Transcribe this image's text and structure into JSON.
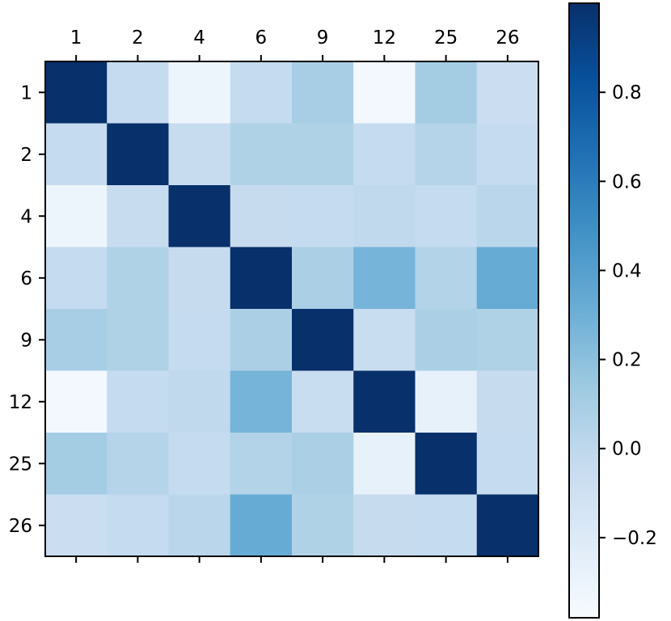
{
  "chart_data": {
    "type": "heatmap",
    "x_labels": [
      "1",
      "2",
      "4",
      "6",
      "9",
      "12",
      "25",
      "26"
    ],
    "y_labels": [
      "1",
      "2",
      "4",
      "6",
      "9",
      "12",
      "25",
      "26"
    ],
    "values": [
      [
        1.0,
        -0.03,
        -0.31,
        -0.03,
        0.1,
        -0.35,
        0.11,
        -0.07
      ],
      [
        -0.03,
        1.0,
        -0.05,
        0.06,
        0.06,
        -0.03,
        0.04,
        -0.03
      ],
      [
        -0.31,
        -0.05,
        1.0,
        -0.04,
        -0.03,
        -0.01,
        -0.03,
        0.02
      ],
      [
        -0.03,
        0.06,
        -0.04,
        1.0,
        0.08,
        0.27,
        0.05,
        0.33
      ],
      [
        0.1,
        0.06,
        -0.03,
        0.08,
        1.0,
        -0.06,
        0.08,
        0.06
      ],
      [
        -0.35,
        -0.03,
        -0.01,
        0.27,
        -0.06,
        1.0,
        -0.27,
        -0.04
      ],
      [
        0.11,
        0.04,
        -0.03,
        0.05,
        0.08,
        -0.27,
        1.0,
        -0.03
      ],
      [
        -0.07,
        -0.03,
        0.02,
        0.33,
        0.06,
        -0.04,
        -0.03,
        1.0
      ]
    ],
    "colormap": "Blues",
    "colorbar": {
      "vmin": -0.38,
      "vmax": 1.0,
      "ticks": [
        {
          "value": 0.8,
          "label": "0.8"
        },
        {
          "value": 0.6,
          "label": "0.6"
        },
        {
          "value": 0.4,
          "label": "0.4"
        },
        {
          "value": 0.2,
          "label": "0.2"
        },
        {
          "value": 0.0,
          "label": "0.0"
        },
        {
          "value": -0.2,
          "label": "−0.2"
        }
      ]
    },
    "x_axis_position": "top",
    "grid": false
  }
}
